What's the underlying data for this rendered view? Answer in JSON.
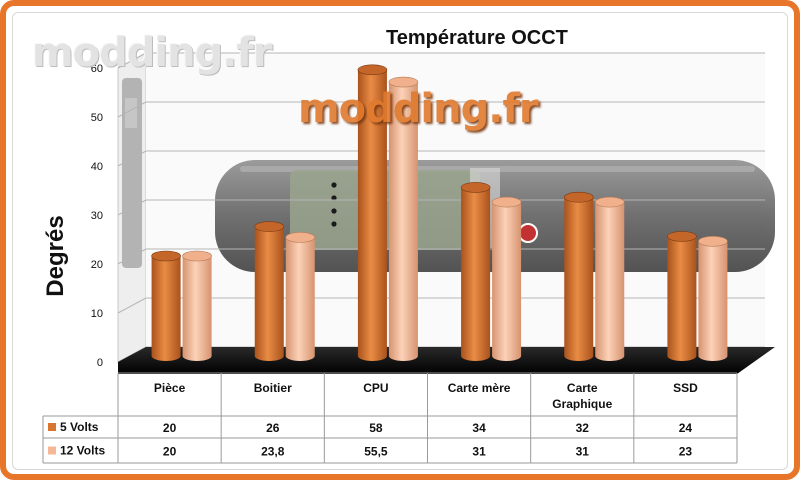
{
  "watermark": {
    "logo_top": "modding.fr",
    "logo_center": "modding.fr"
  },
  "colors": {
    "series_5v": "#d9752e",
    "series_12v": "#f5b896",
    "frame": "#e8762a"
  },
  "chart_data": {
    "type": "bar",
    "title": "Température OCCT",
    "ylabel": "Degrés",
    "ylim": [
      0,
      60
    ],
    "yticks": [
      0,
      10,
      20,
      30,
      40,
      50,
      60
    ],
    "grid": true,
    "legend_placement": "table",
    "categories": [
      "Pièce",
      "Boitier",
      "CPU",
      "Carte mère",
      "Carte Graphique",
      "SSD"
    ],
    "series": [
      {
        "name": "5 Volts",
        "values": [
          20,
          26,
          58,
          34,
          32,
          24
        ],
        "labels": [
          "20",
          "26",
          "58",
          "34",
          "32",
          "24"
        ]
      },
      {
        "name": "12 Volts",
        "values": [
          20,
          23.8,
          55.5,
          31,
          31,
          23
        ],
        "labels": [
          "20",
          "23,8",
          "55,5",
          "31",
          "31",
          "23"
        ]
      }
    ]
  }
}
